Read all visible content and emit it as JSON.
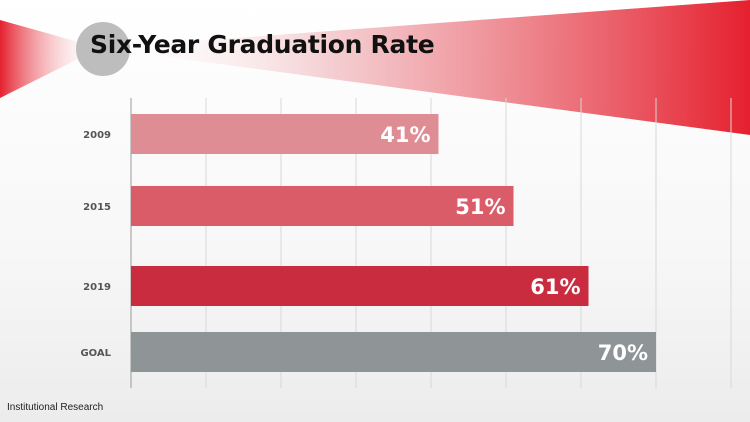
{
  "slide": {
    "title": "Six-Year Graduation Rate",
    "footer": "Institutional Research"
  },
  "colors": {
    "accent": "#d9202f",
    "goal": "#8f9596"
  },
  "chart_data": {
    "type": "bar",
    "orientation": "horizontal",
    "categories": [
      "2009",
      "2015",
      "2019",
      "GOAL"
    ],
    "values": [
      41,
      51,
      61,
      70
    ],
    "data_labels": [
      "41%",
      "51%",
      "61%",
      "70%"
    ],
    "bar_colors": [
      "#df8d95",
      "#da5c68",
      "#c92c3f",
      "#8f9596"
    ],
    "title": "Six-Year Graduation Rate",
    "xlabel": "",
    "ylabel": "",
    "xlim": [
      0,
      80
    ],
    "grid": true,
    "legend": "none"
  }
}
